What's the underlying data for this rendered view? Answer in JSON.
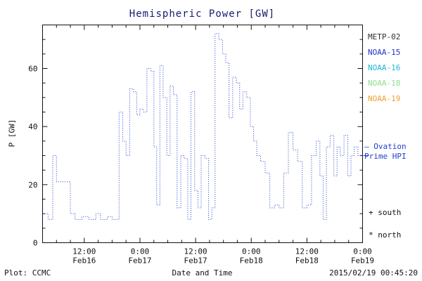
{
  "title": "Hemispheric Power [GW]",
  "legend": {
    "items": [
      {
        "label": "METP-02",
        "color": "#303030"
      },
      {
        "label": "NOAA-15",
        "color": "#2233cc"
      },
      {
        "label": "NOAA-16",
        "color": "#22b5d5"
      },
      {
        "label": "NOAA-18",
        "color": "#8fdd8f"
      },
      {
        "label": "NOAA-19",
        "color": "#efa030"
      }
    ]
  },
  "annotations": {
    "ovation_line1": "– Ovation",
    "ovation_line2": "Prime HPI",
    "ovation_color": "#2240cc",
    "south": "+ south",
    "north": "* north"
  },
  "footer": {
    "credit": "Plot: CCMC",
    "timestamp": "2015/02/19 00:45:20"
  },
  "chart_data": {
    "type": "line",
    "step": true,
    "line_style": "dotted",
    "color": "#2240cc",
    "title": "Hemispheric Power [GW]",
    "xlabel": "Date and Time",
    "ylabel": "P [GW]",
    "x_unit": "hours since 2015-02-16 00:00 UT",
    "xlim": [
      3,
      72
    ],
    "ylim": [
      0,
      75
    ],
    "yticks": [
      0,
      20,
      40,
      60
    ],
    "xticks": [
      {
        "pos": 12,
        "time": "12:00",
        "date": "Feb16"
      },
      {
        "pos": 24,
        "time": "0:00",
        "date": "Feb17"
      },
      {
        "pos": 36,
        "time": "12:00",
        "date": "Feb17"
      },
      {
        "pos": 48,
        "time": "0:00",
        "date": "Feb18"
      },
      {
        "pos": 60,
        "time": "12:00",
        "date": "Feb18"
      },
      {
        "pos": 72,
        "time": "0:00",
        "date": "Feb19"
      }
    ],
    "x": [
      3,
      4.2,
      5.2,
      6,
      9,
      10,
      11.5,
      13,
      14.5,
      15.5,
      17,
      18,
      19.5,
      20.3,
      21,
      21.8,
      22.6,
      23.3,
      24,
      24.8,
      25.5,
      26.3,
      27,
      27.6,
      28.3,
      29,
      29.8,
      30.5,
      31.2,
      32,
      32.8,
      33.5,
      34.3,
      35,
      35.8,
      36.5,
      37.2,
      38,
      38.8,
      39.5,
      40.2,
      41,
      41.8,
      42.5,
      43.2,
      44,
      44.8,
      45.5,
      46.2,
      47,
      47.8,
      48.5,
      49.2,
      50,
      51,
      52,
      53,
      54,
      55,
      56,
      57,
      58,
      59,
      60,
      61,
      62,
      62.8,
      63.5,
      64.2,
      65,
      65.8,
      66.5,
      67.2,
      68,
      68.8,
      69.5,
      70.2,
      71
    ],
    "y": [
      10,
      8,
      30,
      21,
      10,
      8,
      9,
      8,
      10,
      8,
      9,
      8,
      45,
      35,
      30,
      53,
      52,
      44,
      46,
      45,
      60,
      59,
      33,
      13,
      61,
      50,
      30,
      54,
      51,
      12,
      30,
      29,
      8,
      52,
      18,
      12,
      30,
      29,
      8,
      12,
      72,
      70,
      65,
      62,
      43,
      57,
      55,
      46,
      52,
      50,
      40,
      35,
      30,
      28,
      24,
      12,
      13,
      12,
      24,
      38,
      32,
      28,
      12,
      13,
      30,
      35,
      23,
      8,
      33,
      37,
      23,
      33,
      30,
      37,
      23,
      30,
      33,
      30
    ]
  }
}
